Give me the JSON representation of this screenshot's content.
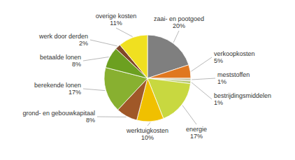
{
  "chart_data": {
    "type": "pie",
    "categories": [
      "zaai- en pootgoed",
      "verkoopkosten",
      "meststoffen",
      "bestrijdingsmiddelen",
      "energie",
      "werktuigkosten",
      "grond- en gebouwkapitaal",
      "berekende lonen",
      "betaalde lonen",
      "werk door derden",
      "overige kosten"
    ],
    "values": [
      20,
      5,
      1,
      1,
      17,
      10,
      8,
      17,
      8,
      2,
      11
    ],
    "value_labels": [
      "20%",
      "5%",
      "1%",
      "1%",
      "17%",
      "10%",
      "8%",
      "17%",
      "8%",
      "2%",
      "11%"
    ],
    "colors": [
      "#7f7f7f",
      "#e07820",
      "#c8c8a8",
      "#b8c870",
      "#c8d840",
      "#f0c000",
      "#a05828",
      "#88b030",
      "#6ca020",
      "#804828",
      "#f0e020"
    ]
  }
}
